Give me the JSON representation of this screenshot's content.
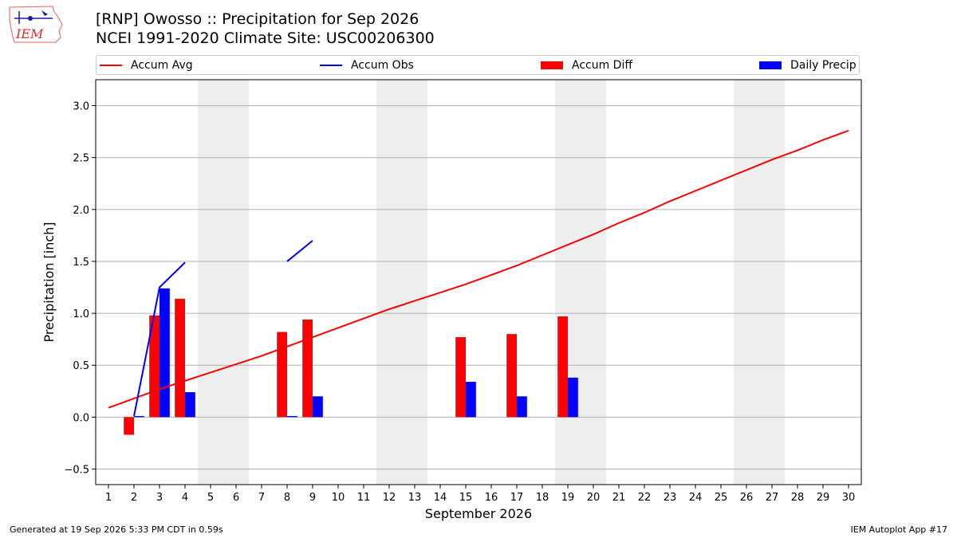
{
  "title": {
    "line1": "[RNP] Owosso :: Precipitation for Sep 2026",
    "line2": "NCEI 1991-2020 Climate Site: USC00206300"
  },
  "logo": {
    "text": "IEM",
    "icon": "iowa-map-weather-station-logo"
  },
  "legend": [
    {
      "label": "Accum Avg",
      "kind": "line",
      "color": "#ff0000"
    },
    {
      "label": "Accum Obs",
      "kind": "line",
      "color": "#0000ff"
    },
    {
      "label": "Accum Diff",
      "kind": "patch",
      "color": "#ff0000"
    },
    {
      "label": "Daily Precip",
      "kind": "patch",
      "color": "#0000ff"
    }
  ],
  "footer": {
    "left": "Generated at 19 Sep 2026 5:33 PM CDT in 0.59s",
    "right": "IEM Autoplot App #17"
  },
  "chart_data": {
    "type": "bar",
    "xlabel": "September 2026",
    "ylabel": "Precipitation [inch]",
    "x": [
      1,
      2,
      3,
      4,
      5,
      6,
      7,
      8,
      9,
      10,
      11,
      12,
      13,
      14,
      15,
      16,
      17,
      18,
      19,
      20,
      21,
      22,
      23,
      24,
      25,
      26,
      27,
      28,
      29,
      30
    ],
    "xlim": [
      0.5,
      30.5
    ],
    "ylim": [
      -0.65,
      3.25
    ],
    "yticks": [
      -0.5,
      0.0,
      0.5,
      1.0,
      1.5,
      2.0,
      2.5,
      3.0
    ],
    "ytick_labels": [
      "−0.5",
      "0.0",
      "0.5",
      "1.0",
      "1.5",
      "2.0",
      "2.5",
      "3.0"
    ],
    "grid": "y",
    "weekend_shading": [
      [
        4.5,
        6.5
      ],
      [
        11.5,
        13.5
      ],
      [
        18.5,
        20.5
      ],
      [
        25.5,
        27.5
      ]
    ],
    "shade_color": "#eeeeee",
    "accum_avg": [
      0.09,
      0.18,
      0.27,
      0.35,
      0.43,
      0.51,
      0.59,
      0.68,
      0.77,
      0.86,
      0.95,
      1.04,
      1.12,
      1.2,
      1.28,
      1.37,
      1.46,
      1.56,
      1.66,
      1.76,
      1.87,
      1.97,
      2.08,
      2.18,
      2.28,
      2.38,
      2.48,
      2.57,
      2.67,
      2.76
    ],
    "accum_obs": [
      null,
      0.01,
      1.25,
      1.49,
      null,
      null,
      null,
      1.5,
      1.7,
      null,
      null,
      null,
      null,
      null,
      null,
      null,
      null,
      null,
      null,
      null,
      null,
      null,
      null,
      null,
      null,
      null,
      null,
      null,
      null,
      null
    ],
    "series": [
      {
        "name": "Accum Diff",
        "color": "#ff0000",
        "points": [
          [
            2,
            -0.17
          ],
          [
            3,
            0.98
          ],
          [
            4,
            1.14
          ],
          [
            8,
            0.82
          ],
          [
            9,
            0.94
          ],
          [
            15,
            0.77
          ],
          [
            17,
            0.8
          ],
          [
            19,
            0.97
          ]
        ]
      },
      {
        "name": "Daily Precip",
        "color": "#0000ff",
        "points": [
          [
            2,
            0.01
          ],
          [
            3,
            1.24
          ],
          [
            4,
            0.24
          ],
          [
            8,
            0.01
          ],
          [
            9,
            0.2
          ],
          [
            15,
            0.34
          ],
          [
            17,
            0.2
          ],
          [
            19,
            0.38
          ]
        ]
      }
    ]
  }
}
